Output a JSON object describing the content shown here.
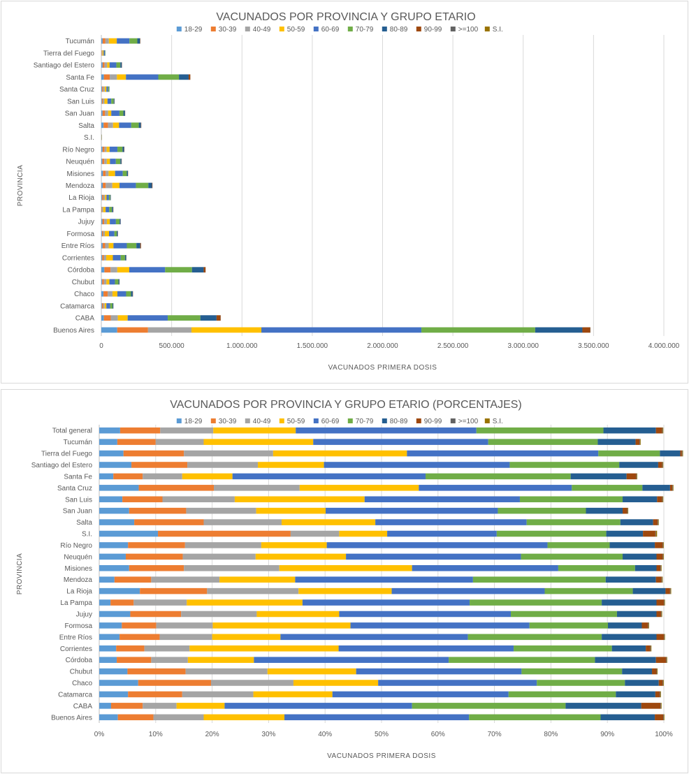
{
  "colors": {
    "18-29": "#5b9bd5",
    "30-39": "#ed7d31",
    "40-49": "#a5a5a5",
    "50-59": "#ffc000",
    "60-69": "#4472c4",
    "70-79": "#70ad47",
    "80-89": "#255e91",
    "90-99": "#9e480e",
    ">=100": "#636363",
    "S.I.": "#997300"
  },
  "chart_data": [
    {
      "type": "bar",
      "orientation": "horizontal",
      "stacked": true,
      "title": "VACUNADOS POR PROVINCIA Y GRUPO ETARIO",
      "xlabel": "VACUNADOS  PRIMERA  DOSIS",
      "ylabel": "PROVINCIA",
      "xlim": [
        0,
        4000000
      ],
      "x_ticks": [
        0,
        500000,
        1000000,
        1500000,
        2000000,
        2500000,
        3000000,
        3500000,
        4000000
      ],
      "x_tick_labels": [
        "0",
        "500.000",
        "1.000.000",
        "1.500.000",
        "2.000.000",
        "2.500.000",
        "3.000.000",
        "3.500.000",
        "4.000.000"
      ],
      "legend_position": "top",
      "grid": true,
      "categories": [
        "Tucumán",
        "Tierra del Fuego",
        "Santiago del Estero",
        "Santa Fe",
        "Santa Cruz",
        "San Luis",
        "San Juan",
        "Salta",
        "S.I.",
        "Río Negro",
        "Neuquén",
        "Misiones",
        "Mendoza",
        "La Rioja",
        "La Pampa",
        "Jujuy",
        "Formosa",
        "Entre Ríos",
        "Corrientes",
        "Córdoba",
        "Chubut",
        "Chaco",
        "Catamarca",
        "CABA",
        "Buenos Aires"
      ],
      "series": [
        {
          "name": "18-29",
          "values": [
            9400,
            1200,
            9200,
            18000,
            5600,
            4200,
            8800,
            16000,
            500,
            8800,
            7000,
            11500,
            10300,
            6200,
            1700,
            7700,
            4700,
            9300,
            6400,
            21600,
            6100,
            15300,
            4300,
            18300,
            113000
          ]
        },
        {
          "name": "30-39",
          "values": [
            19700,
            3100,
            14300,
            42000,
            7500,
            6000,
            18000,
            31700,
            1100,
            14600,
            14100,
            19000,
            21000,
            8700,
            3400,
            12600,
            7600,
            18000,
            11000,
            44000,
            12600,
            30000,
            8200,
            49000,
            219000
          ]
        },
        {
          "name": "40-49",
          "values": [
            24500,
            4400,
            18100,
            51000,
            11000,
            12000,
            22000,
            35700,
            400,
            14600,
            18000,
            21100,
            47000,
            11800,
            8000,
            19200,
            12600,
            25000,
            17500,
            48000,
            17800,
            34000,
            11000,
            50000,
            309000
          ]
        },
        {
          "name": "50-59",
          "values": [
            56400,
            7500,
            17000,
            64000,
            12200,
            21600,
            22000,
            42700,
            400,
            20800,
            22300,
            46200,
            51000,
            10400,
            17500,
            20900,
            29800,
            34000,
            47000,
            85000,
            21000,
            35000,
            12300,
            70000,
            497000
          ]
        },
        {
          "name": "60-69",
          "values": [
            90000,
            9400,
            48600,
            230000,
            11500,
            27000,
            58000,
            86500,
            900,
            55700,
            42100,
            54500,
            117000,
            17000,
            25000,
            43400,
            38000,
            95000,
            55500,
            255000,
            39600,
            62000,
            27000,
            285000,
            1138000
          ]
        },
        {
          "name": "70-79",
          "values": [
            56000,
            3000,
            28000,
            147000,
            7000,
            17000,
            28000,
            53700,
            900,
            36000,
            32000,
            28700,
            88000,
            9400,
            20000,
            26300,
            17000,
            68000,
            31000,
            191000,
            24800,
            35000,
            16500,
            232000,
            809000
          ]
        },
        {
          "name": "80-89",
          "values": [
            19300,
            1000,
            10400,
            69000,
            2500,
            5600,
            11500,
            15800,
            300,
            11500,
            8000,
            8000,
            26000,
            3500,
            8300,
            6800,
            7000,
            28000,
            8500,
            83000,
            6800,
            12000,
            6000,
            115000,
            336000
          ]
        },
        {
          "name": "90-99",
          "values": [
            2100,
            60,
            1600,
            12000,
            200,
            1000,
            1300,
            2100,
            100,
            2000,
            1600,
            1300,
            3200,
            500,
            1700,
            900,
            1200,
            5000,
            1200,
            13500,
            1000,
            1800,
            700,
            29000,
            55000
          ]
        },
        {
          "name": ">=100",
          "values": [
            110,
            10,
            70,
            400,
            10,
            30,
            60,
            100,
            10,
            70,
            60,
            60,
            180,
            20,
            60,
            40,
            30,
            150,
            60,
            500,
            40,
            100,
            30,
            900,
            2000
          ]
        },
        {
          "name": "S.I.",
          "values": [
            20,
            5,
            10,
            60,
            5,
            5,
            10,
            20,
            5,
            10,
            10,
            10,
            30,
            5,
            10,
            5,
            5,
            30,
            10,
            80,
            5,
            10,
            5,
            100,
            300
          ]
        }
      ]
    },
    {
      "type": "bar",
      "orientation": "horizontal",
      "stacked": true,
      "percent": true,
      "title": "VACUNADOS POR PROVINCIA Y GRUPO ETARIO (PORCENTAJES)",
      "xlabel": "VACUNADOS  PRIMERA  DOSIS",
      "ylabel": "PROVINCIA",
      "xlim": [
        0,
        100
      ],
      "x_ticks": [
        0,
        10,
        20,
        30,
        40,
        50,
        60,
        70,
        80,
        90,
        100
      ],
      "x_tick_labels": [
        "0%",
        "10%",
        "20%",
        "30%",
        "40%",
        "50%",
        "60%",
        "70%",
        "80%",
        "90%",
        "100%"
      ],
      "legend_position": "top",
      "grid": true,
      "categories": [
        "Total general",
        "Tucumán",
        "Tierra del Fuego",
        "Santiago del Estero",
        "Santa Fe",
        "Santa Cruz",
        "San Luis",
        "San Juan",
        "Salta",
        "S.I.",
        "Río Negro",
        "Neuquén",
        "Misiones",
        "Mendoza",
        "La Rioja",
        "La Pampa",
        "Jujuy",
        "Formosa",
        "Entre Ríos",
        "Corrientes",
        "Córdoba",
        "Chubut",
        "Chaco",
        "Catamarca",
        "CABA",
        "Buenos Aires"
      ],
      "series": [
        {
          "name": "18-29",
          "values": [
            3.7,
            3.2,
            4.3,
            5.7,
            2.5,
            7.0,
            4.1,
            5.3,
            6.2,
            10.4,
            5.1,
            4.7,
            5.3,
            2.7,
            7.2,
            2.0,
            5.5,
            4.0,
            3.6,
            3.0,
            3.1,
            5.0,
            6.9,
            5.1,
            2.1,
            3.3
          ]
        },
        {
          "name": "30-39",
          "values": [
            7.1,
            6.8,
            10.7,
            9.9,
            5.2,
            13.3,
            7.1,
            10.1,
            12.3,
            23.5,
            10.1,
            10.1,
            9.7,
            6.5,
            11.9,
            4.1,
            9.0,
            6.1,
            7.1,
            5.0,
            6.1,
            10.3,
            12.9,
            9.6,
            5.6,
            6.3
          ]
        },
        {
          "name": "40-49",
          "values": [
            9.4,
            8.5,
            15.8,
            12.5,
            7.0,
            15.2,
            12.8,
            12.4,
            13.8,
            8.6,
            13.5,
            12.9,
            16.9,
            12.1,
            16.2,
            9.4,
            13.4,
            10.0,
            9.3,
            8.0,
            6.5,
            14.5,
            14.6,
            12.6,
            6.0,
            8.9
          ]
        },
        {
          "name": "50-59",
          "values": [
            14.6,
            19.4,
            23.7,
            11.7,
            8.9,
            21.1,
            23.0,
            12.3,
            16.6,
            8.5,
            11.6,
            16.0,
            23.5,
            13.4,
            16.5,
            20.5,
            14.6,
            24.4,
            12.1,
            26.4,
            11.7,
            15.7,
            15.0,
            14.0,
            8.5,
            14.3
          ]
        },
        {
          "name": "60-69",
          "values": [
            32.0,
            31.0,
            33.9,
            32.9,
            34.2,
            27.1,
            27.5,
            30.5,
            26.8,
            19.4,
            39.1,
            31.0,
            25.9,
            31.5,
            27.1,
            29.6,
            30.4,
            31.7,
            33.2,
            31.0,
            34.5,
            29.3,
            28.1,
            31.2,
            33.2,
            32.7
          ]
        },
        {
          "name": "70-79",
          "values": [
            22.5,
            19.4,
            10.9,
            19.4,
            25.7,
            12.5,
            18.2,
            15.6,
            16.6,
            19.4,
            11.0,
            18.0,
            13.6,
            23.5,
            15.6,
            23.4,
            18.8,
            13.9,
            23.7,
            17.4,
            25.9,
            17.8,
            15.6,
            19.0,
            27.2,
            23.3
          ]
        },
        {
          "name": "80-89",
          "values": [
            9.3,
            6.7,
            3.6,
            6.9,
            9.9,
            4.9,
            6.1,
            6.5,
            5.8,
            6.5,
            8.0,
            6.0,
            3.8,
            8.9,
            5.8,
            9.7,
            7.0,
            6.0,
            9.7,
            6.0,
            10.8,
            5.3,
            6.0,
            7.0,
            13.4,
            9.6
          ]
        },
        {
          "name": "90-99",
          "values": [
            1.1,
            0.7,
            0.3,
            0.7,
            1.7,
            0.4,
            0.9,
            0.8,
            0.8,
            2.2,
            1.4,
            1.1,
            0.7,
            1.0,
            0.8,
            1.3,
            0.8,
            1.1,
            1.3,
            0.8,
            1.8,
            0.8,
            0.7,
            0.8,
            3.4,
            1.5
          ]
        },
        {
          "name": ">=100",
          "values": [
            0.1,
            0.1,
            0.1,
            0.1,
            0.1,
            0.1,
            0.1,
            0.1,
            0.1,
            0.1,
            0.1,
            0.1,
            0.1,
            0.1,
            0.1,
            0.1,
            0.1,
            0.1,
            0.1,
            0.1,
            0.1,
            0.1,
            0.1,
            0.1,
            0.1,
            0.1
          ]
        },
        {
          "name": "S.I.",
          "values": [
            0.1,
            0.1,
            0.1,
            0.1,
            0.1,
            0.1,
            0.1,
            0.1,
            0.1,
            0.2,
            0.1,
            0.1,
            0.1,
            0.1,
            0.1,
            0.1,
            0.1,
            0.1,
            0.1,
            0.1,
            0.1,
            0.1,
            0.1,
            0.1,
            0.1,
            0.1
          ]
        }
      ]
    }
  ]
}
